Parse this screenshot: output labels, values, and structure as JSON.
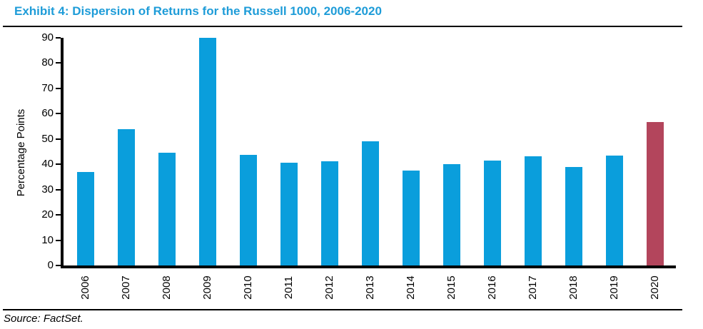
{
  "header": {
    "title": "Exhibit 4: Dispersion of Returns for the Russell 1000, 2006-2020"
  },
  "footer": {
    "source": "Source: FactSet."
  },
  "colors": {
    "title_blue": "#1E9CD8",
    "bar_blue": "#0A9EDC",
    "bar_highlight_red": "#B3455C",
    "axis_black": "#000000"
  },
  "chart_data": {
    "type": "bar",
    "title": "Exhibit 4: Dispersion of Returns for the Russell 1000, 2006-2020",
    "xlabel": "",
    "ylabel": "Percentage Points",
    "categories": [
      "2006",
      "2007",
      "2008",
      "2009",
      "2010",
      "2011",
      "2012",
      "2013",
      "2014",
      "2015",
      "2016",
      "2017",
      "2018",
      "2019",
      "2020"
    ],
    "values": [
      37.0,
      54.0,
      44.5,
      90.0,
      43.7,
      40.5,
      41.1,
      49.0,
      37.5,
      40.1,
      41.6,
      43.3,
      38.8,
      43.5,
      56.7
    ],
    "ylim": [
      0,
      90
    ],
    "yticks": [
      0,
      10,
      20,
      30,
      40,
      50,
      60,
      70,
      80,
      90
    ],
    "grid": false,
    "legend": false,
    "bar_color": "#0A9EDC",
    "highlight_color": "#B3455C",
    "highlight_category": "2020",
    "x_tick_rotation_deg": -90
  }
}
